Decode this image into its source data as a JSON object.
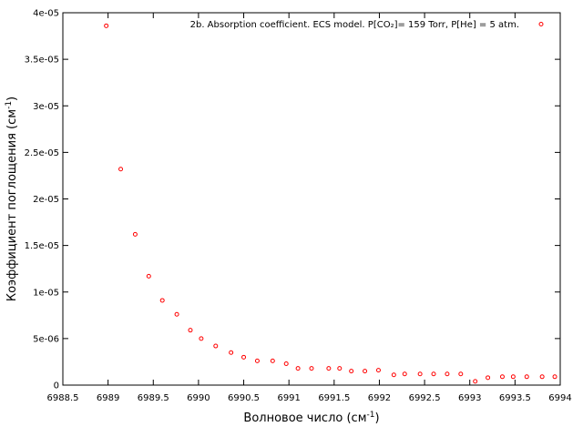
{
  "chart_data": {
    "type": "scatter",
    "xlabel": "Волновое число (см",
    "xlabel_sup": "-1",
    "xlabel_suffix": ")",
    "ylabel": "Коэффициент поглощения (см",
    "ylabel_sup": "-1",
    "ylabel_suffix": ")",
    "xlim": [
      6988.5,
      6994
    ],
    "ylim": [
      0,
      4e-05
    ],
    "xticks": [
      {
        "value": 6988.5,
        "label": "6988.5"
      },
      {
        "value": 6989,
        "label": "6989"
      },
      {
        "value": 6989.5,
        "label": "6989.5"
      },
      {
        "value": 6990,
        "label": "6990"
      },
      {
        "value": 6990.5,
        "label": "6990.5"
      },
      {
        "value": 6991,
        "label": "6991"
      },
      {
        "value": 6991.5,
        "label": "6991.5"
      },
      {
        "value": 6992,
        "label": "6992"
      },
      {
        "value": 6992.5,
        "label": "6992.5"
      },
      {
        "value": 6993,
        "label": "6993"
      },
      {
        "value": 6993.5,
        "label": "6993.5"
      },
      {
        "value": 6994,
        "label": "6994"
      }
    ],
    "yticks": [
      {
        "value": 0,
        "label": "0"
      },
      {
        "value": 5e-06,
        "label": "5e-06"
      },
      {
        "value": 1e-05,
        "label": "1e-05"
      },
      {
        "value": 1.5e-05,
        "label": "1.5e-05"
      },
      {
        "value": 2e-05,
        "label": "2e-05"
      },
      {
        "value": 2.5e-05,
        "label": "2.5e-05"
      },
      {
        "value": 3e-05,
        "label": "3e-05"
      },
      {
        "value": 3.5e-05,
        "label": "3.5e-05"
      },
      {
        "value": 4e-05,
        "label": "4e-05"
      }
    ],
    "grid": false,
    "legend_position": "top-right",
    "series": [
      {
        "name": "2b. Absorption coefficient. ECS model. P[CO₂]= 159 Torr, P[He] = 5 atm.",
        "color": "#ff0000",
        "marker": "open-circle",
        "x": [
          6988.98,
          6989.14,
          6989.3,
          6989.45,
          6989.6,
          6989.76,
          6989.91,
          6990.03,
          6990.19,
          6990.36,
          6990.5,
          6990.65,
          6990.82,
          6990.97,
          6991.1,
          6991.25,
          6991.44,
          6991.56,
          6991.69,
          6991.84,
          6991.99,
          6992.16,
          6992.28,
          6992.45,
          6992.6,
          6992.75,
          6992.9,
          6993.06,
          6993.2,
          6993.36,
          6993.48,
          6993.63,
          6993.8,
          6993.94
        ],
        "y": [
          3.86e-05,
          2.32e-05,
          1.62e-05,
          1.17e-05,
          9.1e-06,
          7.6e-06,
          5.9e-06,
          5e-06,
          4.2e-06,
          3.5e-06,
          3e-06,
          2.6e-06,
          2.6e-06,
          2.3e-06,
          1.8e-06,
          1.8e-06,
          1.8e-06,
          1.8e-06,
          1.5e-06,
          1.5e-06,
          1.6e-06,
          1.1e-06,
          1.2e-06,
          1.2e-06,
          1.2e-06,
          1.2e-06,
          1.2e-06,
          4e-07,
          8e-07,
          9e-07,
          9e-07,
          9e-07,
          9e-07,
          9e-07
        ]
      }
    ]
  }
}
